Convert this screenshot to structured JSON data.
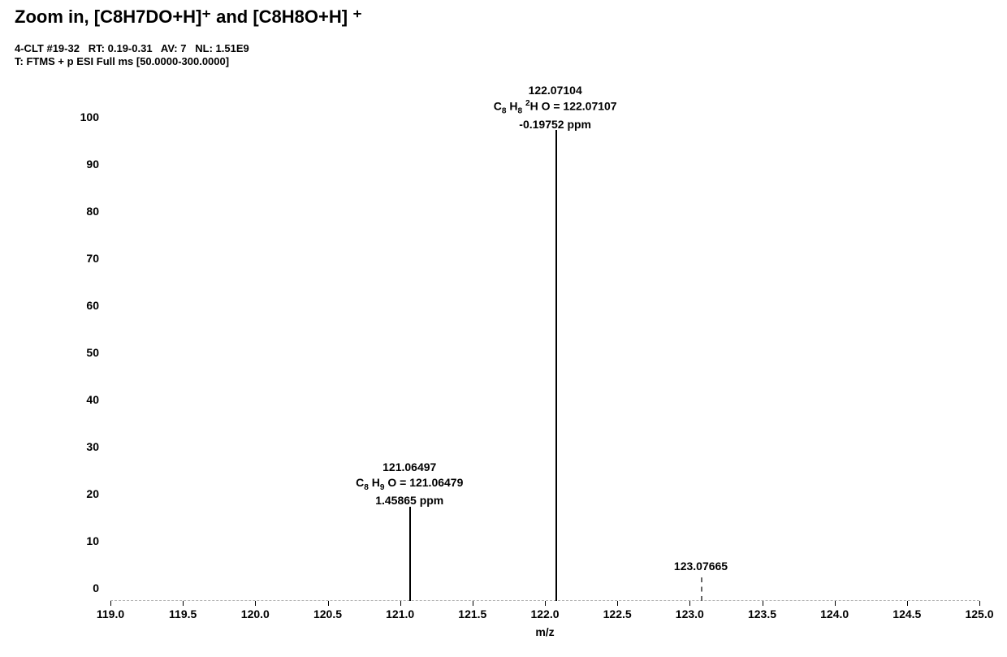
{
  "title": "Zoom in, [C8H7DO+H]⁺ and [C8H8O+H] ⁺",
  "meta_line1": "4-CLT #19-32   RT: 0.19-0.31   AV: 7   NL: 1.51E9",
  "meta_line2": "T: FTMS + p ESI Full ms [50.0000-300.0000]",
  "chart": {
    "type": "mass-spectrum",
    "background_color": "#ffffff",
    "axis_color": "#000000",
    "baseline_style": "dashed",
    "baseline_color": "#b0b0b0",
    "label_fontsize": 14,
    "label_fontweight": 700,
    "x_axis": {
      "title": "m/z",
      "min": 119.0,
      "max": 125.0,
      "tick_step": 0.5,
      "tick_labels": [
        "119.0",
        "119.5",
        "120.0",
        "120.5",
        "121.0",
        "121.5",
        "122.0",
        "122.5",
        "123.0",
        "123.5",
        "124.0",
        "124.5",
        "125.0"
      ]
    },
    "y_axis": {
      "min": 0,
      "max": 100,
      "tick_step": 10,
      "tick_labels": [
        "0",
        "10",
        "20",
        "30",
        "40",
        "50",
        "60",
        "70",
        "80",
        "90",
        "100"
      ]
    },
    "peaks": [
      {
        "mz": 122.07104,
        "intensity": 100,
        "style": "solid",
        "color": "#000000"
      },
      {
        "mz": 121.06497,
        "intensity": 20,
        "style": "solid",
        "color": "#000000"
      },
      {
        "mz": 123.07665,
        "intensity": 5,
        "style": "dashed",
        "color": "#666666"
      }
    ],
    "annotations": {
      "peak122": {
        "mz_x": 122.07104,
        "top_percent_from_ymax": -10,
        "lines": {
          "mz": "122.07104",
          "formula_html": "C<sub>8</sub> H<sub>8</sub> <sup>2</sup>H O = 122.07107",
          "ppm": "-0.19752 ppm"
        }
      },
      "peak121": {
        "mz_x": 121.06497,
        "top_percent_from_ymax": 70,
        "lines": {
          "mz": "121.06497",
          "formula_html": "C<sub>8</sub> H<sub>9</sub> O = 121.06479",
          "ppm": "1.45865 ppm"
        }
      },
      "peak123": {
        "mz_x": 123.07665,
        "top_percent_from_ymax": 91,
        "lines": {
          "mz": "123.07665"
        }
      }
    }
  }
}
